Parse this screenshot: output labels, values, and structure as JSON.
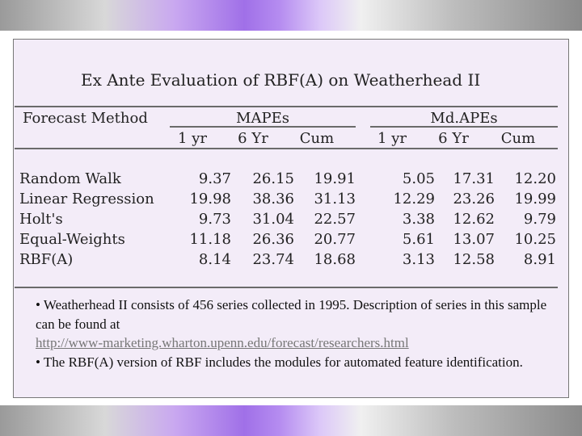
{
  "title": "Ex Ante Evaluation of RBF(A) on Weatherhead II",
  "table": {
    "method_header": "Forecast Method",
    "groups": [
      "MAPEs",
      "Md.APEs"
    ],
    "subheaders": [
      "1 yr",
      "6 Yr",
      "Cum",
      "1 yr",
      "6 Yr",
      "Cum"
    ],
    "rows": [
      {
        "method": "Random Walk",
        "values": [
          "9.37",
          "26.15",
          "19.91",
          "5.05",
          "17.31",
          "12.20"
        ]
      },
      {
        "method": "Linear Regression",
        "values": [
          "19.98",
          "38.36",
          "31.13",
          "12.29",
          "23.26",
          "19.99"
        ]
      },
      {
        "method": "Holt's",
        "values": [
          "9.73",
          "31.04",
          "22.57",
          "3.38",
          "12.62",
          "9.79"
        ]
      },
      {
        "method": "Equal-Weights",
        "values": [
          "11.18",
          "26.36",
          "20.77",
          "5.61",
          "13.07",
          "10.25"
        ]
      },
      {
        "method": "RBF(A)",
        "values": [
          "8.14",
          "23.74",
          "18.68",
          "3.13",
          "12.58",
          "8.91"
        ]
      }
    ]
  },
  "notes": {
    "line1": "• Weatherhead II consists of 456 series collected in 1995. Description of series in this sample can be found at",
    "link": "http://www-marketing.wharton.upenn.edu/forecast/researchers.html",
    "line2": "• The RBF(A) version of RBF includes the modules for automated feature identification."
  }
}
